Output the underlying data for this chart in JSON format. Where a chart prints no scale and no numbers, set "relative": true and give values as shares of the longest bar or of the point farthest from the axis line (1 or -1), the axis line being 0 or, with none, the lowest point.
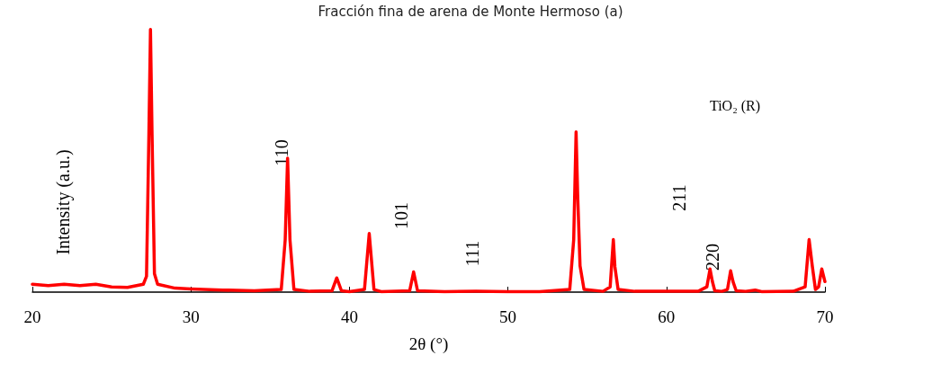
{
  "chart_data": {
    "type": "line",
    "title": "Fracción fina de arena de Monte Hermoso (a)",
    "xlabel": "2θ (°)",
    "ylabel": "Intensity (a.u.)",
    "relative": true,
    "xlim": [
      20,
      70
    ],
    "xticks": [
      20,
      30,
      40,
      50,
      60,
      70
    ],
    "grid": false,
    "marker": "none",
    "line_style": "solid",
    "annotations": [
      "110",
      "101",
      "111",
      "211",
      "220",
      "TiO₂ (R)"
    ],
    "series": [
      {
        "color": "#ff0000",
        "x": [
          20,
          21,
          22,
          23,
          24,
          25,
          26,
          27,
          27.2,
          27.35,
          27.45,
          27.55,
          27.7,
          27.9,
          29,
          30,
          32,
          34,
          35.7,
          35.95,
          36.1,
          36.25,
          36.5,
          37.5,
          38.9,
          39.2,
          39.5,
          40,
          40.95,
          41.25,
          41.55,
          42,
          43.8,
          44.05,
          44.3,
          46,
          48,
          50,
          52,
          53.9,
          54.15,
          54.3,
          54.4,
          54.55,
          54.8,
          56,
          56.45,
          56.65,
          56.75,
          56.95,
          58,
          60,
          62,
          62.55,
          62.75,
          62.9,
          63.05,
          63.5,
          63.85,
          64.05,
          64.2,
          64.4,
          65,
          65.6,
          66,
          68,
          68.75,
          69,
          69.2,
          69.4,
          69.6,
          69.8,
          70
        ],
        "values": [
          0.03,
          0.025,
          0.03,
          0.025,
          0.03,
          0.02,
          0.018,
          0.03,
          0.06,
          0.6,
          1.0,
          0.6,
          0.07,
          0.03,
          0.015,
          0.012,
          0.008,
          0.005,
          0.01,
          0.2,
          0.51,
          0.2,
          0.01,
          0.003,
          0.005,
          0.054,
          0.005,
          0.002,
          0.01,
          0.223,
          0.01,
          0.002,
          0.005,
          0.077,
          0.005,
          0.002,
          0.003,
          0.002,
          0.002,
          0.01,
          0.2,
          0.61,
          0.37,
          0.1,
          0.01,
          0.003,
          0.02,
          0.2,
          0.096,
          0.01,
          0.003,
          0.003,
          0.003,
          0.02,
          0.088,
          0.04,
          0.005,
          0.003,
          0.01,
          0.081,
          0.04,
          0.005,
          0.003,
          0.008,
          0.002,
          0.003,
          0.02,
          0.2,
          0.1,
          0.01,
          0.02,
          0.088,
          0.04
        ]
      }
    ]
  }
}
